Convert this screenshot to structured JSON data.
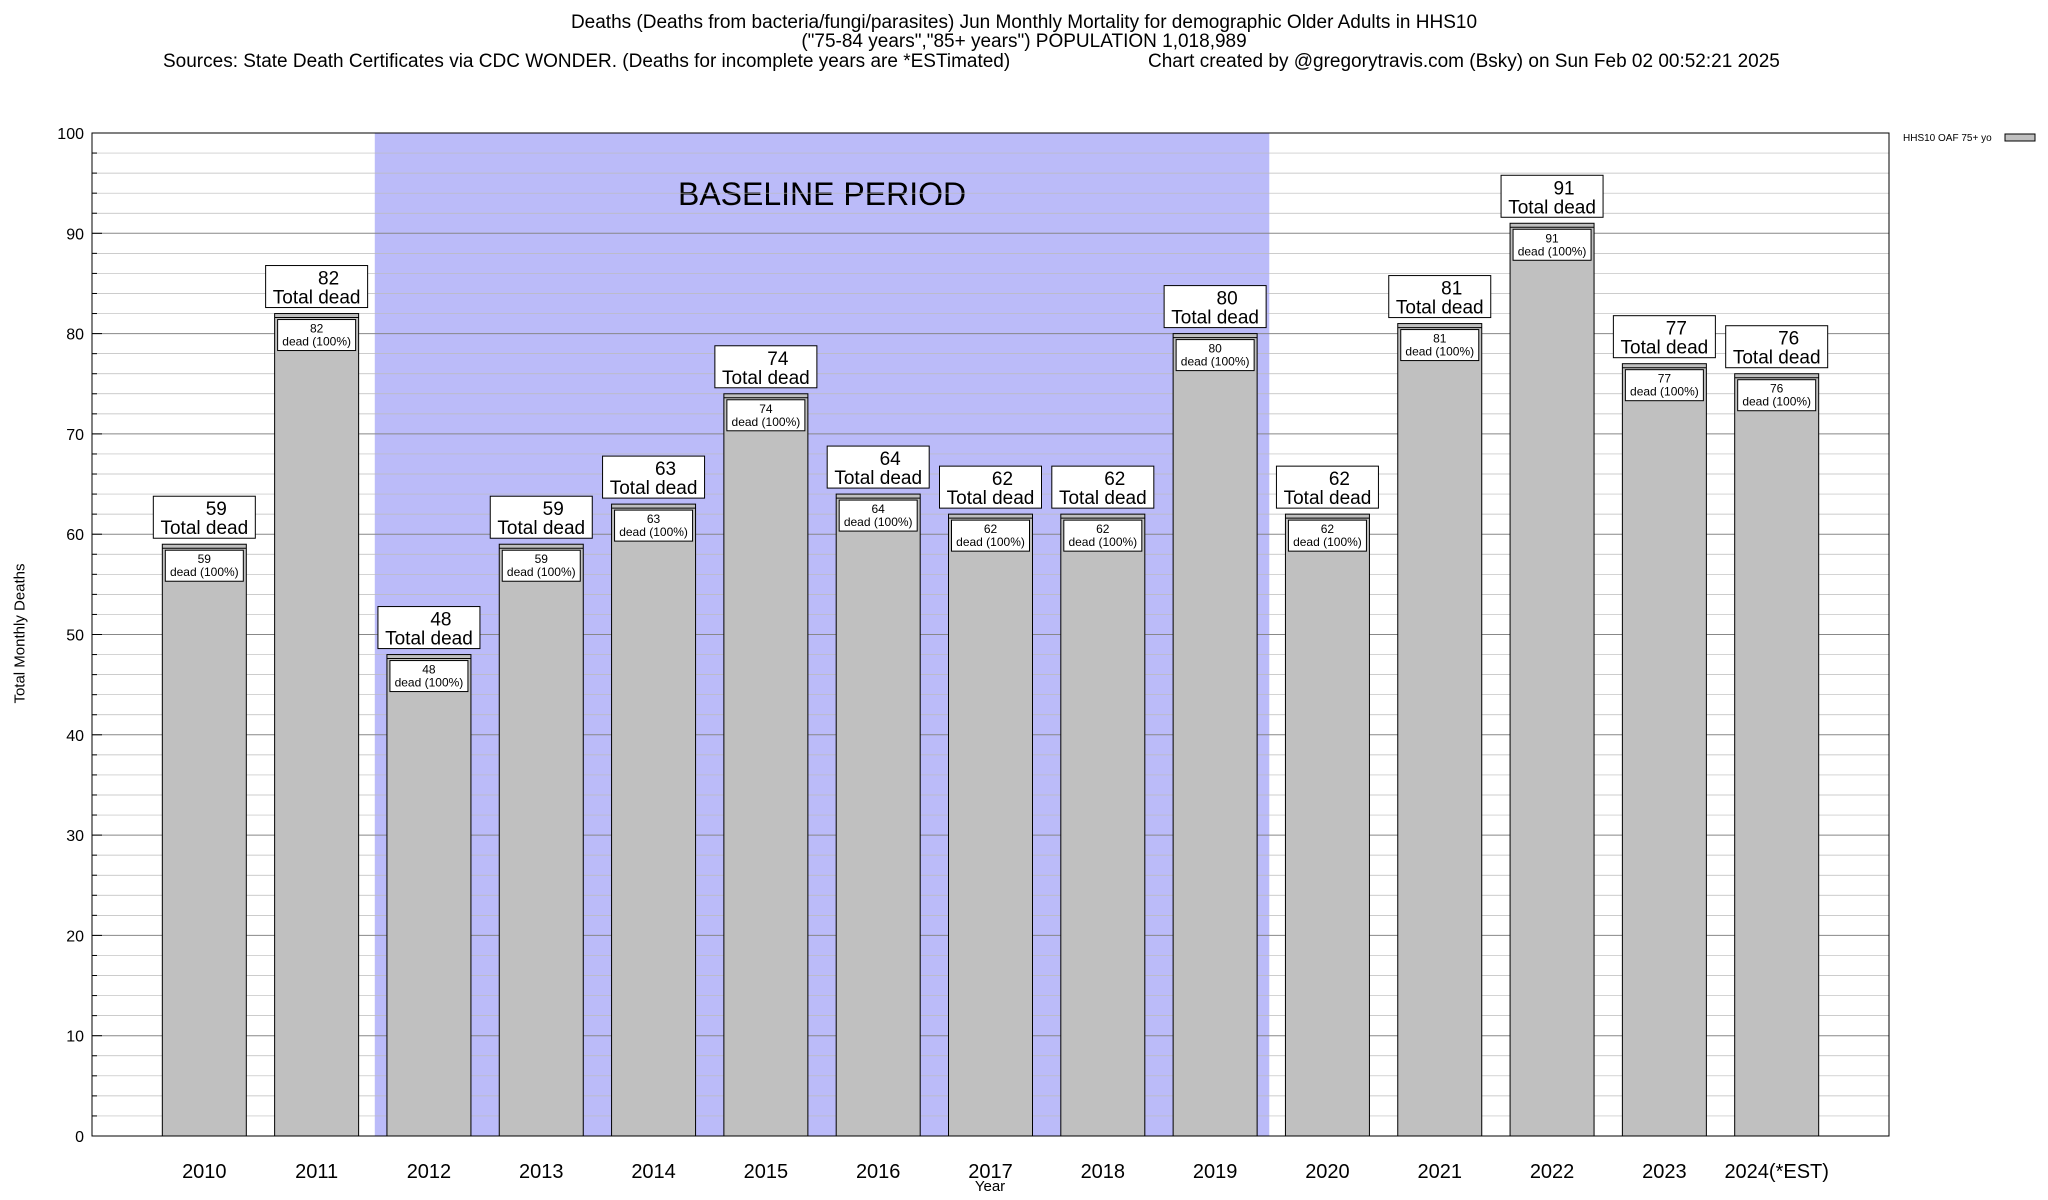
{
  "chart_data": {
    "type": "bar",
    "title_lines": [
      "Deaths (Deaths from bacteria/fungi/parasites) Jun Monthly Mortality for demographic Older Adults in HHS10",
      "(\"75-84 years\",\"85+ years\") POPULATION 1,018,989"
    ],
    "sources": "Sources: State Death Certificates via CDC WONDER. (Deaths for incomplete years are *ESTimated)",
    "credit": "Chart created by @gregorytravis.com (Bsky) on Sun Feb 02 00:52:21 2025",
    "xlabel": "Year",
    "ylabel": "Total Monthly Deaths",
    "ylim": [
      0,
      100
    ],
    "yticks": [
      0,
      10,
      20,
      30,
      40,
      50,
      60,
      70,
      80,
      90,
      100
    ],
    "grid": true,
    "legend": {
      "label": "HHS10 OAF 75+ yo",
      "placement": "top-right",
      "color": "#c0c0c0"
    },
    "bar_color": "#c0c0c0",
    "baseline": {
      "label": "BASELINE PERIOD",
      "from": "2012",
      "to": "2019",
      "color": "#bbbbf9"
    },
    "categories": [
      "2010",
      "2011",
      "2012",
      "2013",
      "2014",
      "2015",
      "2016",
      "2017",
      "2018",
      "2019",
      "2020",
      "2021",
      "2022",
      "2023",
      "2024(*EST)"
    ],
    "values": [
      59,
      82,
      48,
      59,
      63,
      74,
      64,
      62,
      62,
      80,
      62,
      81,
      91,
      77,
      76
    ],
    "total_label_suffix": "Total dead",
    "inner_label_suffix": "dead (100%)"
  }
}
